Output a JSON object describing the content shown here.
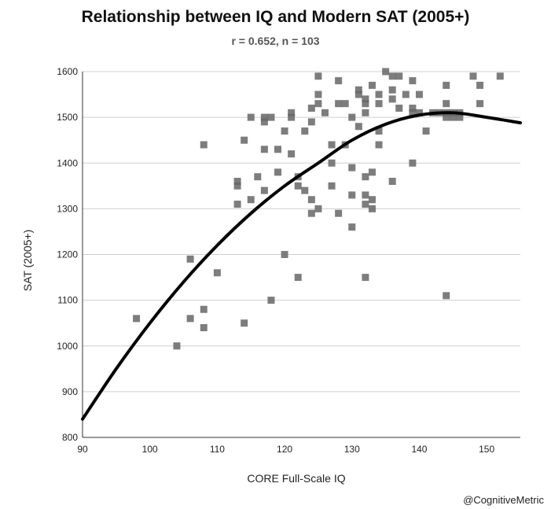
{
  "chart_data": {
    "type": "scatter",
    "title": "Relationship between IQ and Modern SAT (2005+)",
    "subtitle": "r = 0.652, n = 103",
    "xlabel": "CORE Full-Scale IQ",
    "ylabel": "SAT (2005+)",
    "xlim": [
      90,
      155
    ],
    "ylim": [
      800,
      1600
    ],
    "xticks": [
      90,
      100,
      110,
      120,
      130,
      140,
      150
    ],
    "yticks": [
      800,
      900,
      1000,
      1100,
      1200,
      1300,
      1400,
      1500,
      1600
    ],
    "grid": "horizontal",
    "marker_color": "#666666",
    "curve_color": "#000000",
    "points": [
      [
        98,
        1060
      ],
      [
        104,
        1000
      ],
      [
        106,
        1190
      ],
      [
        106,
        1060
      ],
      [
        108,
        1440
      ],
      [
        108,
        1080
      ],
      [
        108,
        1040
      ],
      [
        110,
        1160
      ],
      [
        113,
        1360
      ],
      [
        113,
        1350
      ],
      [
        113,
        1310
      ],
      [
        114,
        1450
      ],
      [
        114,
        1050
      ],
      [
        115,
        1500
      ],
      [
        115,
        1320
      ],
      [
        116,
        1370
      ],
      [
        117,
        1500
      ],
      [
        117,
        1490
      ],
      [
        117,
        1430
      ],
      [
        117,
        1340
      ],
      [
        118,
        1500
      ],
      [
        118,
        1100
      ],
      [
        119,
        1430
      ],
      [
        119,
        1380
      ],
      [
        120,
        1470
      ],
      [
        120,
        1200
      ],
      [
        121,
        1510
      ],
      [
        121,
        1500
      ],
      [
        122,
        1370
      ],
      [
        122,
        1350
      ],
      [
        122,
        1150
      ],
      [
        123,
        1470
      ],
      [
        123,
        1340
      ],
      [
        124,
        1520
      ],
      [
        124,
        1490
      ],
      [
        124,
        1320
      ],
      [
        124,
        1290
      ],
      [
        125,
        1590
      ],
      [
        125,
        1550
      ],
      [
        125,
        1530
      ],
      [
        125,
        1300
      ],
      [
        127,
        1440
      ],
      [
        127,
        1400
      ],
      [
        127,
        1350
      ],
      [
        128,
        1580
      ],
      [
        128,
        1530
      ],
      [
        128,
        1290
      ],
      [
        129,
        1530
      ],
      [
        129,
        1440
      ],
      [
        130,
        1500
      ],
      [
        130,
        1390
      ],
      [
        130,
        1330
      ],
      [
        130,
        1260
      ],
      [
        131,
        1560
      ],
      [
        131,
        1550
      ],
      [
        131,
        1480
      ],
      [
        132,
        1540
      ],
      [
        132,
        1530
      ],
      [
        132,
        1510
      ],
      [
        132,
        1370
      ],
      [
        132,
        1330
      ],
      [
        132,
        1310
      ],
      [
        132,
        1150
      ],
      [
        133,
        1570
      ],
      [
        133,
        1380
      ],
      [
        133,
        1320
      ],
      [
        133,
        1300
      ],
      [
        134,
        1550
      ],
      [
        134,
        1530
      ],
      [
        134,
        1470
      ],
      [
        134,
        1440
      ],
      [
        135,
        1600
      ],
      [
        136,
        1590
      ],
      [
        136,
        1560
      ],
      [
        136,
        1540
      ],
      [
        136,
        1360
      ],
      [
        137,
        1590
      ],
      [
        137,
        1520
      ],
      [
        138,
        1550
      ],
      [
        139,
        1580
      ],
      [
        139,
        1520
      ],
      [
        139,
        1510
      ],
      [
        139,
        1400
      ],
      [
        140,
        1550
      ],
      [
        141,
        1470
      ],
      [
        143,
        1510
      ],
      [
        144,
        1570
      ],
      [
        144,
        1530
      ],
      [
        144,
        1510
      ],
      [
        144,
        1500
      ],
      [
        144,
        1110
      ],
      [
        145,
        1510
      ],
      [
        145,
        1500
      ],
      [
        146,
        1510
      ],
      [
        148,
        1590
      ],
      [
        149,
        1570
      ],
      [
        149,
        1530
      ],
      [
        152,
        1590
      ],
      [
        140,
        1510
      ],
      [
        142,
        1510
      ],
      [
        146,
        1500
      ],
      [
        126,
        1510
      ],
      [
        121,
        1420
      ]
    ],
    "trendline": {
      "type": "polynomial",
      "points": [
        [
          90,
          840
        ],
        [
          95,
          950
        ],
        [
          100,
          1050
        ],
        [
          105,
          1140
        ],
        [
          110,
          1220
        ],
        [
          115,
          1290
        ],
        [
          120,
          1350
        ],
        [
          125,
          1400
        ],
        [
          130,
          1450
        ],
        [
          135,
          1485
        ],
        [
          140,
          1505
        ],
        [
          145,
          1510
        ],
        [
          150,
          1500
        ],
        [
          155,
          1488
        ]
      ]
    }
  },
  "credit": "@CognitiveMetric"
}
